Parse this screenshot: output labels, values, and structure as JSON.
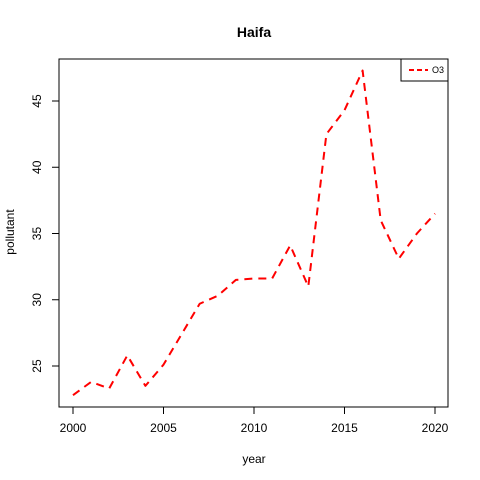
{
  "chart_data": {
    "type": "line",
    "title": "Haifa",
    "xlabel": "year",
    "ylabel": "pollutant",
    "xlim": [
      2000,
      2020
    ],
    "ylim": [
      22.5,
      48
    ],
    "x_ticks": [
      2000,
      2005,
      2010,
      2015,
      2020
    ],
    "y_ticks": [
      25,
      30,
      35,
      40,
      45
    ],
    "grid": false,
    "legend_position": "top-right",
    "x": [
      2000,
      2001,
      2002,
      2003,
      2004,
      2005,
      2006,
      2007,
      2008,
      2009,
      2010,
      2011,
      2012,
      2013,
      2014,
      2015,
      2016,
      2017,
      2018,
      2019,
      2020
    ],
    "series": [
      {
        "name": "O3",
        "color": "#ff0000",
        "line_style": "dashed",
        "values": [
          22.8,
          23.8,
          23.3,
          25.8,
          23.5,
          25.1,
          27.4,
          29.7,
          30.3,
          31.5,
          31.6,
          31.6,
          34.1,
          31.0,
          42.5,
          44.3,
          47.3,
          36.0,
          33.1,
          35.0,
          36.5
        ]
      }
    ]
  }
}
